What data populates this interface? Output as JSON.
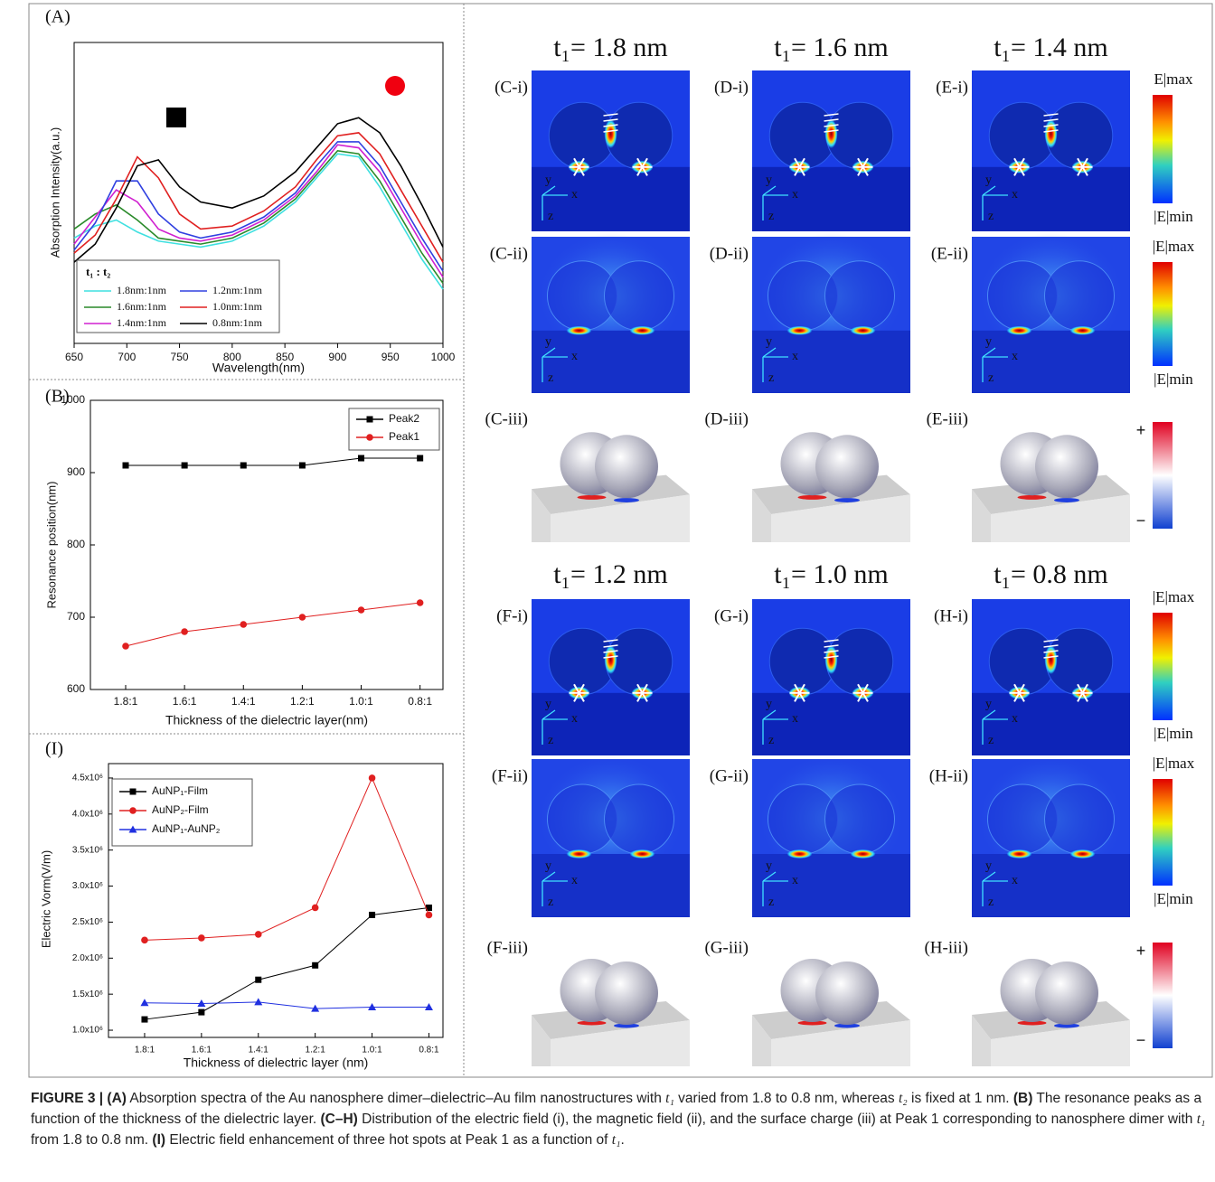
{
  "chart_data": [
    {
      "type": "line",
      "panel_label": "(A)",
      "x_label": "Wavelength(nm)",
      "y_label": "Absorption Intensity(a.u.)",
      "x": [
        650,
        670,
        690,
        710,
        730,
        750,
        770,
        800,
        830,
        860,
        880,
        900,
        920,
        940,
        960,
        980,
        1000
      ],
      "xlim": [
        650,
        1000
      ],
      "xticks": [
        650,
        700,
        750,
        800,
        850,
        900,
        950,
        1000
      ],
      "ylim": [
        0,
        1
      ],
      "legend_title": "t₁ : t₂",
      "legend": "bottom-left",
      "series": [
        {
          "name": "1.8nm:1nm",
          "color": "#3fe0e0",
          "values": [
            0.35,
            0.39,
            0.41,
            0.37,
            0.34,
            0.33,
            0.32,
            0.34,
            0.39,
            0.47,
            0.55,
            0.63,
            0.62,
            0.52,
            0.4,
            0.28,
            0.18
          ]
        },
        {
          "name": "1.6nm:1nm",
          "color": "#2a8a2a",
          "values": [
            0.38,
            0.43,
            0.46,
            0.41,
            0.35,
            0.34,
            0.33,
            0.35,
            0.4,
            0.48,
            0.56,
            0.64,
            0.63,
            0.54,
            0.42,
            0.3,
            0.2
          ]
        },
        {
          "name": "1.4nm:1nm",
          "color": "#d020d0",
          "values": [
            0.33,
            0.42,
            0.51,
            0.47,
            0.38,
            0.35,
            0.34,
            0.36,
            0.41,
            0.49,
            0.57,
            0.66,
            0.65,
            0.57,
            0.45,
            0.33,
            0.22
          ]
        },
        {
          "name": "1.2nm:1nm",
          "color": "#3040e0",
          "values": [
            0.31,
            0.4,
            0.54,
            0.54,
            0.43,
            0.37,
            0.35,
            0.37,
            0.42,
            0.5,
            0.59,
            0.67,
            0.67,
            0.59,
            0.47,
            0.35,
            0.24
          ]
        },
        {
          "name": "1.0nm:1nm",
          "color": "#e02020",
          "values": [
            0.3,
            0.36,
            0.48,
            0.62,
            0.55,
            0.43,
            0.38,
            0.39,
            0.44,
            0.52,
            0.61,
            0.69,
            0.7,
            0.63,
            0.51,
            0.39,
            0.27
          ]
        },
        {
          "name": "0.8nm:1nm",
          "color": "#000000",
          "values": [
            0.27,
            0.33,
            0.45,
            0.59,
            0.61,
            0.52,
            0.47,
            0.45,
            0.49,
            0.57,
            0.65,
            0.73,
            0.75,
            0.7,
            0.59,
            0.46,
            0.32
          ]
        }
      ]
    },
    {
      "type": "line",
      "panel_label": "(B)",
      "x_label": "Thickness of the dielectric layer(nm)",
      "y_label": "Resonance position(nm)",
      "categories": [
        "1.8:1",
        "1.6:1",
        "1.4:1",
        "1.2:1",
        "1.0:1",
        "0.8:1"
      ],
      "ylim": [
        600,
        1000
      ],
      "yticks": [
        600,
        700,
        800,
        900,
        1000
      ],
      "legend": "top-right",
      "series": [
        {
          "name": "Peak2",
          "color": "#000000",
          "marker": "square",
          "values": [
            910,
            910,
            910,
            910,
            920,
            920
          ]
        },
        {
          "name": "Peak1",
          "color": "#e02020",
          "marker": "circle",
          "values": [
            660,
            680,
            690,
            700,
            710,
            720
          ]
        }
      ]
    },
    {
      "type": "line",
      "panel_label": "(I)",
      "x_label": "Thickness of dielectric layer (nm)",
      "y_label": "Electric Vorm(V/m)",
      "categories": [
        "1.8:1",
        "1.6:1",
        "1.4:1",
        "1.2:1",
        "1.0:1",
        "0.8:1"
      ],
      "ylim": [
        900000,
        4700000
      ],
      "yticks": [
        {
          "value": 1000000,
          "label": "1.0x10⁶"
        },
        {
          "value": 1500000,
          "label": "1.5x10⁶"
        },
        {
          "value": 2000000,
          "label": "2.0x10⁶"
        },
        {
          "value": 2500000,
          "label": "2.5x10⁶"
        },
        {
          "value": 3000000,
          "label": "3.0x10⁶"
        },
        {
          "value": 3500000,
          "label": "3.5x10⁶"
        },
        {
          "value": 4000000,
          "label": "4.0x10⁶"
        },
        {
          "value": 4500000,
          "label": "4.5x10⁶"
        }
      ],
      "legend": "top-left",
      "series": [
        {
          "name": "AuNP₁-Film",
          "color": "#000000",
          "marker": "square",
          "values": [
            1150000,
            1250000,
            1700000,
            1900000,
            2600000,
            2700000
          ]
        },
        {
          "name": "AuNP₂-Film",
          "color": "#e02020",
          "marker": "circle",
          "values": [
            2250000,
            2280000,
            2330000,
            2700000,
            4500000,
            2600000
          ]
        },
        {
          "name": "AuNP₁-AuNP₂",
          "color": "#2030e0",
          "marker": "triangle",
          "values": [
            1380000,
            1370000,
            1390000,
            1300000,
            1320000,
            1320000
          ]
        }
      ]
    }
  ],
  "field_maps": {
    "axis_letters": [
      "y",
      "x",
      "z"
    ],
    "groups": [
      {
        "titles": [
          "t₁= 1.8 nm",
          "t₁= 1.6 nm",
          "t₁= 1.4 nm"
        ],
        "labels": [
          [
            "(C-i)",
            "(D-i)",
            "(E-i)"
          ],
          [
            "(C-ii)",
            "(D-ii)",
            "(E-ii)"
          ],
          [
            "(C-iii)",
            "(D-iii)",
            "(E-iii)"
          ]
        ],
        "colorbar_labels": [
          [
            "E|max",
            "|E|min"
          ],
          [
            "|E|max",
            "|E|min"
          ],
          [
            "+",
            "−"
          ]
        ]
      },
      {
        "titles": [
          "t₁= 1.2 nm",
          "t₁= 1.0 nm",
          "t₁= 0.8 nm"
        ],
        "labels": [
          [
            "(F-i)",
            "(G-i)",
            "(H-i)"
          ],
          [
            "(F-ii)",
            "(G-ii)",
            "(H-ii)"
          ],
          [
            "(F-iii)",
            "(G-iii)",
            "(H-iii)"
          ]
        ],
        "colorbar_labels": [
          [
            "|E|max",
            "|E|min"
          ],
          [
            "|E|max",
            "|E|min"
          ],
          [
            "+",
            "−"
          ]
        ]
      }
    ]
  },
  "caption": [
    {
      "text": "FIGURE 3 | (A)",
      "style": "bold"
    },
    {
      "text": " Absorption spectra of the Au nanosphere dimer–dielectric–Au film nanostructures with "
    },
    {
      "text": "t₁",
      "style": "italic"
    },
    {
      "text": " varied from 1.8 to 0.8 nm, whereas "
    },
    {
      "text": "t₂",
      "style": "italic"
    },
    {
      "text": " is fixed at 1 nm. "
    },
    {
      "text": "(B)",
      "style": "bold"
    },
    {
      "text": " The resonance peaks as a function of the thickness of the dielectric layer. "
    },
    {
      "text": "(C–H)",
      "style": "bold"
    },
    {
      "text": " Distribution of the electric field (i), the magnetic field (ii), and the surface charge (iii) at Peak 1 corresponding to nanosphere dimer with "
    },
    {
      "text": "t₁",
      "style": "italic"
    },
    {
      "text": " from 1.8 to 0.8 nm. "
    },
    {
      "text": "(I)",
      "style": "bold"
    },
    {
      "text": " Electric field enhancement of three hot spots at Peak 1 as a function of "
    },
    {
      "text": "t₁",
      "style": "italic"
    },
    {
      "text": "."
    }
  ]
}
